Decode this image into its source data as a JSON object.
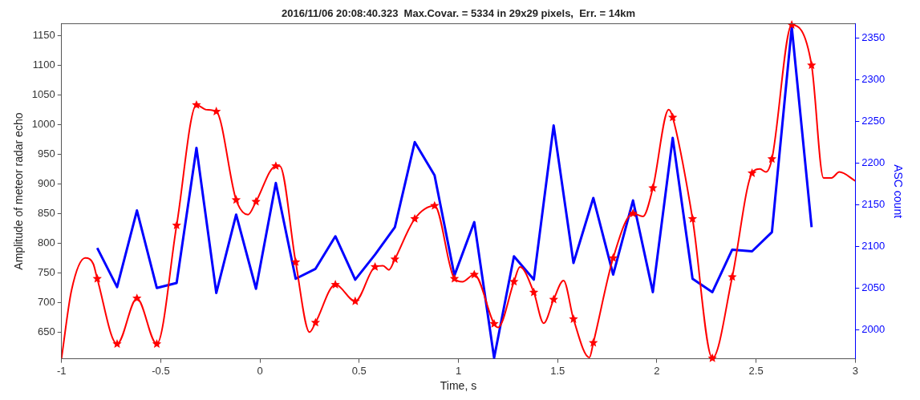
{
  "chart_data": {
    "type": "line",
    "title": "2016/11/06 20:08:40.323  Max.Covar. = 5334 in 29x29 pixels,  Err. = 14km",
    "xlabel": "Time, s",
    "ylabel": "Amplitude of meteor radar echo",
    "y2label": "ASC count",
    "xlim": [
      -1,
      3
    ],
    "xticks": [
      -1,
      -0.5,
      0,
      0.5,
      1,
      1.5,
      2,
      2.5,
      3
    ],
    "ylim": [
      605,
      1170
    ],
    "yticks": [
      650,
      700,
      750,
      800,
      850,
      900,
      950,
      1000,
      1050,
      1100,
      1150
    ],
    "y2lim": [
      1965,
      2367
    ],
    "y2ticks": [
      2000,
      2050,
      2100,
      2150,
      2200,
      2250,
      2300,
      2350
    ],
    "grid": false,
    "legend": false,
    "series": [
      {
        "type": "line",
        "color": "#ff0000",
        "marker": "none",
        "x": [
          -1.0,
          -0.95,
          -0.88,
          -0.84,
          -0.82,
          -0.72,
          -0.62,
          -0.52,
          -0.42,
          -0.32,
          -0.27,
          -0.22,
          -0.12,
          -0.06,
          -0.02,
          0.08,
          0.1,
          0.18,
          0.25,
          0.28,
          0.38,
          0.48,
          0.58,
          0.62,
          0.65,
          0.68,
          0.78,
          0.88,
          0.98,
          1.02,
          1.08,
          1.18,
          1.2,
          1.28,
          1.31,
          1.38,
          1.43,
          1.48,
          1.53,
          1.58,
          1.66,
          1.68,
          1.78,
          1.88,
          1.93,
          1.98,
          2.06,
          2.08,
          2.18,
          2.28,
          2.38,
          2.48,
          2.52,
          2.55,
          2.58,
          2.68,
          2.78,
          2.84,
          2.88,
          2.92,
          3.0
        ],
        "values": [
          606,
          720,
          775,
          765,
          740,
          630,
          707,
          630,
          830,
          1033,
          1025,
          1022,
          873,
          848,
          870,
          930,
          930,
          768,
          650,
          666,
          730,
          702,
          760,
          762,
          755,
          773,
          841,
          863,
          740,
          735,
          747,
          664,
          658,
          735,
          760,
          717,
          665,
          705,
          737,
          672,
          607,
          632,
          775,
          850,
          845,
          893,
          1025,
          1012,
          841,
          606,
          743,
          918,
          925,
          920,
          942,
          1168,
          1100,
          910,
          910,
          920,
          905
        ]
      },
      {
        "type": "scatter",
        "color": "#ff0000",
        "marker": "star",
        "x": [
          -0.82,
          -0.72,
          -0.62,
          -0.52,
          -0.42,
          -0.32,
          -0.22,
          -0.12,
          -0.02,
          0.08,
          0.18,
          0.28,
          0.38,
          0.48,
          0.58,
          0.68,
          0.78,
          0.88,
          0.98,
          1.08,
          1.18,
          1.28,
          1.38,
          1.48,
          1.58,
          1.68,
          1.78,
          1.88,
          1.98,
          2.08,
          2.18,
          2.28,
          2.38,
          2.48,
          2.58,
          2.68,
          2.78
        ],
        "values": [
          740,
          630,
          707,
          630,
          830,
          1033,
          1022,
          873,
          870,
          930,
          768,
          666,
          730,
          702,
          760,
          773,
          841,
          863,
          740,
          747,
          664,
          735,
          717,
          705,
          672,
          632,
          775,
          850,
          893,
          1012,
          841,
          606,
          743,
          918,
          942,
          1168,
          1100
        ]
      },
      {
        "type": "line",
        "axis": "y2",
        "color": "#0000ff",
        "marker": "none",
        "x": [
          -0.82,
          -0.72,
          -0.62,
          -0.52,
          -0.42,
          -0.32,
          -0.22,
          -0.12,
          -0.02,
          0.08,
          0.18,
          0.28,
          0.38,
          0.48,
          0.58,
          0.68,
          0.78,
          0.88,
          0.98,
          1.08,
          1.18,
          1.28,
          1.38,
          1.48,
          1.58,
          1.68,
          1.78,
          1.88,
          1.98,
          2.08,
          2.18,
          2.28,
          2.38,
          2.48,
          2.58,
          2.68,
          2.78
        ],
        "values": [
          2098,
          2051,
          2143,
          2050,
          2056,
          2218,
          2044,
          2138,
          2049,
          2176,
          2061,
          2073,
          2112,
          2060,
          2090,
          2123,
          2225,
          2185,
          2065,
          2129,
          1966,
          2088,
          2060,
          2245,
          2080,
          2158,
          2066,
          2155,
          2045,
          2230,
          2061,
          2045,
          2096,
          2094,
          2117,
          2363,
          2123
        ]
      }
    ]
  }
}
